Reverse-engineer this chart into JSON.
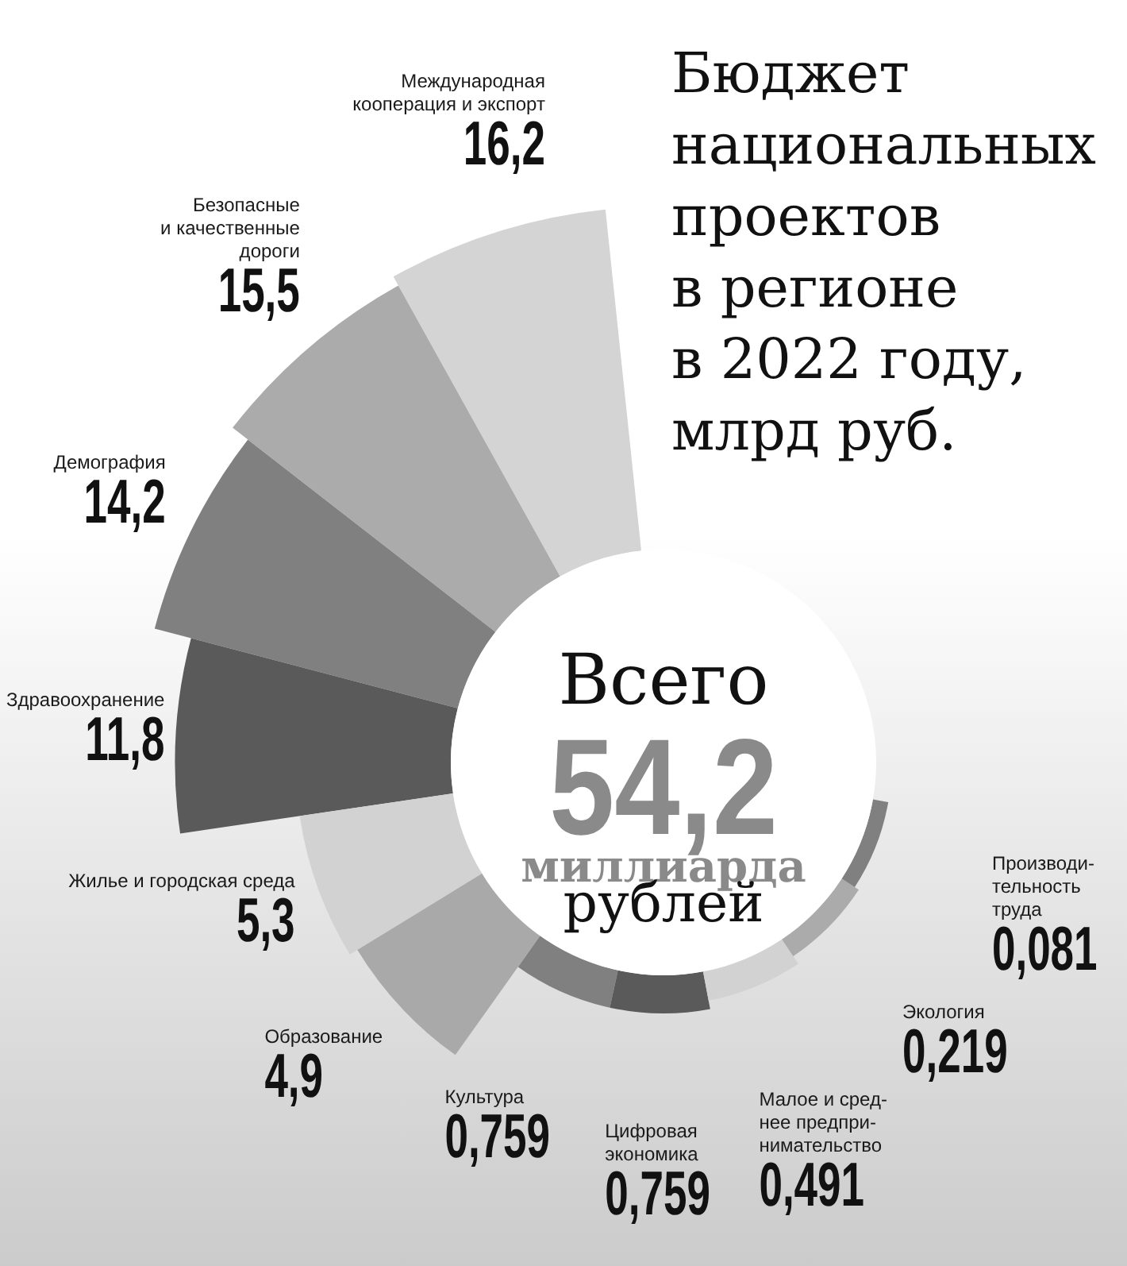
{
  "chart_data": {
    "type": "other",
    "title": "Бюджет\nнациональных\nпроектов\nв регионе\nв 2022 году,\nмлрд руб.",
    "categories": [
      "Международная\nкооперация и экспорт",
      "Безопасные\nи качественные\nдороги",
      "Демография",
      "Здравоохранение",
      "Жилье и городская среда",
      "Образование",
      "Культура",
      "Цифровая\nэкономика",
      "Малое и сред-\nнее предпри-\nнимательство",
      "Экология",
      "Производи-\nтельность\nтруда"
    ],
    "values": [
      16.2,
      15.5,
      14.2,
      11.8,
      5.3,
      4.9,
      0.759,
      0.759,
      0.491,
      0.219,
      0.081
    ],
    "value_labels": [
      "16,2",
      "15,5",
      "14,2",
      "11,8",
      "5,3",
      "4,9",
      "0,759",
      "0,759",
      "0,491",
      "0,219",
      "0,081"
    ],
    "colors": [
      "#d4d4d4",
      "#ababab",
      "#808080",
      "#5a5a5a",
      "#d2d2d2",
      "#a9a9a9",
      "#808080",
      "#5a5a5a",
      "#d2d2d2",
      "#ababab",
      "#808080"
    ],
    "annotations": [
      "Всего",
      "54,2",
      "миллиарда",
      "рублей"
    ]
  }
}
